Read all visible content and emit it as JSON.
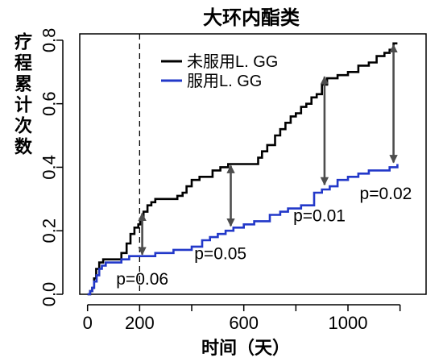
{
  "chart_data": {
    "type": "line",
    "title": "大环内酯类",
    "xlabel": "时间（天）",
    "ylabel": "疗程累计次数",
    "xlim": [
      -30,
      1300
    ],
    "ylim": [
      0,
      0.82
    ],
    "x_ticks": [
      {
        "value": 0,
        "label": "0"
      },
      {
        "value": 200,
        "label": "200"
      },
      {
        "value": 600,
        "label": "600"
      },
      {
        "value": 1000,
        "label": "1000"
      }
    ],
    "x_minor_ticks": [
      400,
      800,
      1200
    ],
    "y_ticks": [
      {
        "value": 0,
        "label": "0.0"
      },
      {
        "value": 0.2,
        "label": "0.2"
      },
      {
        "value": 0.4,
        "label": "0.4"
      },
      {
        "value": 0.6,
        "label": "0.6"
      },
      {
        "value": 0.8,
        "label": "0.8"
      }
    ],
    "vline": 200,
    "legend_position": "top",
    "series": [
      {
        "name": "未服用L. GG",
        "color": "#000000",
        "points": [
          [
            0,
            0
          ],
          [
            10,
            0.01
          ],
          [
            18,
            0.02
          ],
          [
            25,
            0.05
          ],
          [
            33,
            0.08
          ],
          [
            45,
            0.1
          ],
          [
            60,
            0.11
          ],
          [
            100,
            0.11
          ],
          [
            130,
            0.13
          ],
          [
            150,
            0.16
          ],
          [
            165,
            0.19
          ],
          [
            180,
            0.21
          ],
          [
            195,
            0.22
          ],
          [
            205,
            0.24
          ],
          [
            215,
            0.26
          ],
          [
            230,
            0.28
          ],
          [
            245,
            0.29
          ],
          [
            260,
            0.3
          ],
          [
            330,
            0.3
          ],
          [
            345,
            0.31
          ],
          [
            365,
            0.32
          ],
          [
            380,
            0.34
          ],
          [
            400,
            0.36
          ],
          [
            430,
            0.37
          ],
          [
            460,
            0.37
          ],
          [
            480,
            0.39
          ],
          [
            500,
            0.39
          ],
          [
            510,
            0.4
          ],
          [
            540,
            0.41
          ],
          [
            640,
            0.41
          ],
          [
            655,
            0.43
          ],
          [
            670,
            0.45
          ],
          [
            690,
            0.47
          ],
          [
            720,
            0.5
          ],
          [
            740,
            0.52
          ],
          [
            760,
            0.54
          ],
          [
            780,
            0.56
          ],
          [
            800,
            0.57
          ],
          [
            820,
            0.59
          ],
          [
            840,
            0.6
          ],
          [
            860,
            0.62
          ],
          [
            880,
            0.63
          ],
          [
            900,
            0.66
          ],
          [
            920,
            0.68
          ],
          [
            960,
            0.69
          ],
          [
            1000,
            0.7
          ],
          [
            1040,
            0.72
          ],
          [
            1080,
            0.73
          ],
          [
            1110,
            0.75
          ],
          [
            1140,
            0.76
          ],
          [
            1160,
            0.77
          ],
          [
            1175,
            0.79
          ],
          [
            1190,
            0.79
          ]
        ]
      },
      {
        "name": "服用L. GG",
        "color": "#2238c9",
        "points": [
          [
            0,
            0
          ],
          [
            10,
            0.01
          ],
          [
            18,
            0.02
          ],
          [
            25,
            0.04
          ],
          [
            35,
            0.06
          ],
          [
            45,
            0.08
          ],
          [
            55,
            0.09
          ],
          [
            70,
            0.1
          ],
          [
            110,
            0.1
          ],
          [
            130,
            0.11
          ],
          [
            160,
            0.12
          ],
          [
            200,
            0.12
          ],
          [
            260,
            0.13
          ],
          [
            330,
            0.14
          ],
          [
            400,
            0.15
          ],
          [
            440,
            0.17
          ],
          [
            470,
            0.18
          ],
          [
            500,
            0.19
          ],
          [
            530,
            0.2
          ],
          [
            560,
            0.21
          ],
          [
            600,
            0.22
          ],
          [
            640,
            0.23
          ],
          [
            700,
            0.25
          ],
          [
            740,
            0.26
          ],
          [
            770,
            0.27
          ],
          [
            820,
            0.28
          ],
          [
            870,
            0.32
          ],
          [
            900,
            0.33
          ],
          [
            930,
            0.34
          ],
          [
            960,
            0.36
          ],
          [
            1000,
            0.37
          ],
          [
            1040,
            0.38
          ],
          [
            1080,
            0.39
          ],
          [
            1120,
            0.39
          ],
          [
            1160,
            0.4
          ],
          [
            1190,
            0.41
          ]
        ]
      }
    ],
    "arrows": [
      {
        "x": 210,
        "y1": 0.12,
        "y2": 0.26
      },
      {
        "x": 550,
        "y1": 0.21,
        "y2": 0.41
      },
      {
        "x": 910,
        "y1": 0.34,
        "y2": 0.69
      },
      {
        "x": 1175,
        "y1": 0.41,
        "y2": 0.79
      }
    ],
    "annotations": [
      {
        "text": "p=0.06",
        "x": 110,
        "y": 0.03
      },
      {
        "text": "p=0.05",
        "x": 410,
        "y": 0.11
      },
      {
        "text": "p=0.01",
        "x": 790,
        "y": 0.23
      },
      {
        "text": "p=0.02",
        "x": 1045,
        "y": 0.3
      }
    ],
    "arrow_color": "#4d4d4d"
  }
}
